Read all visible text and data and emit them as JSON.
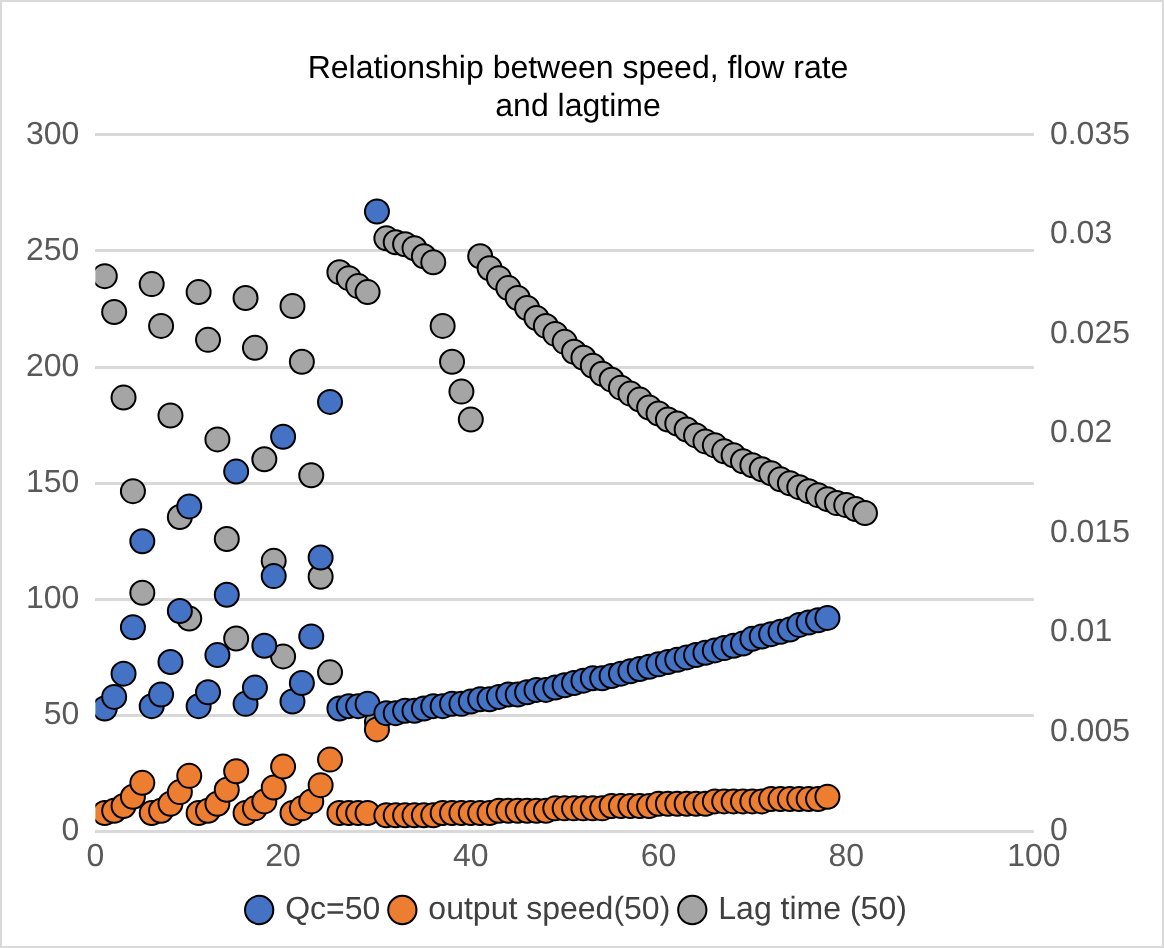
{
  "chart_data": {
    "type": "scatter",
    "title": "Relationship between speed, flow rate and lagtime",
    "x": [
      1,
      2,
      3,
      4,
      5,
      6,
      7,
      8,
      9,
      10,
      11,
      12,
      13,
      14,
      15,
      16,
      17,
      18,
      19,
      20,
      21,
      22,
      23,
      24,
      25,
      26,
      27,
      28,
      29,
      30,
      31,
      32,
      33,
      34,
      35,
      36,
      37,
      38,
      39,
      40,
      41,
      42,
      43,
      44,
      45,
      46,
      47,
      48,
      49,
      50,
      51,
      52,
      53,
      54,
      55,
      56,
      57,
      58,
      59,
      60,
      61,
      62,
      63,
      64,
      65,
      66,
      67,
      68,
      69,
      70,
      71,
      72,
      73,
      74,
      75,
      76,
      77,
      78
    ],
    "series": [
      {
        "name": "Qc=50",
        "color": "#4472c4",
        "values": [
          53,
          58,
          68,
          88,
          125,
          54,
          59,
          73,
          95,
          140,
          54,
          60,
          76,
          102,
          155,
          55,
          62,
          80,
          110,
          170,
          56,
          64,
          84,
          118,
          185,
          53,
          54,
          54,
          55,
          267,
          51,
          51,
          52,
          52,
          53,
          54,
          54,
          55,
          55,
          56,
          57,
          57,
          58,
          59,
          59,
          60,
          61,
          61,
          62,
          63,
          64,
          65,
          66,
          66,
          67,
          68,
          69,
          70,
          71,
          72,
          73,
          74,
          75,
          76,
          77,
          78,
          79,
          80,
          81,
          83,
          84,
          85,
          86,
          87,
          89,
          90,
          91,
          92
        ]
      },
      {
        "name": "output speed(50)",
        "color": "#ed7d31",
        "values": [
          8,
          9,
          11,
          15,
          21,
          8,
          9,
          12,
          17,
          24,
          8,
          9,
          12,
          18,
          26,
          8,
          10,
          13,
          19,
          28,
          8,
          10,
          13,
          20,
          31,
          8,
          8,
          8,
          8,
          44,
          7,
          7,
          7,
          7,
          7,
          7,
          8,
          8,
          8,
          8,
          8,
          8,
          9,
          9,
          9,
          9,
          9,
          9,
          10,
          10,
          10,
          10,
          10,
          10,
          11,
          11,
          11,
          11,
          11,
          12,
          12,
          12,
          12,
          12,
          12,
          13,
          13,
          13,
          13,
          13,
          13,
          14,
          14,
          14,
          14,
          14,
          14,
          15
        ]
      },
      {
        "name": "Lag time (50)",
        "color": "#a5a5a5",
        "axis": "y2",
        "x": [
          1,
          2,
          3,
          4,
          5,
          6,
          7,
          8,
          9,
          10,
          11,
          12,
          13,
          14,
          15,
          16,
          17,
          18,
          19,
          20,
          21,
          22,
          23,
          24,
          25,
          26,
          27,
          28,
          29,
          30,
          31,
          32,
          33,
          34,
          35,
          36,
          37,
          38,
          39,
          40,
          41,
          42,
          43,
          44,
          45,
          46,
          47,
          48,
          49,
          50,
          51,
          52,
          53,
          54,
          55,
          56,
          57,
          58,
          59,
          60,
          61,
          62,
          63,
          64,
          65,
          66,
          67,
          68,
          69,
          70,
          71,
          72,
          73,
          74,
          75,
          76,
          77,
          78,
          79,
          80,
          81,
          82
        ],
        "values": [
          0.0279,
          0.0261,
          0.0218,
          0.0171,
          0.012,
          0.0275,
          0.0254,
          0.0209,
          0.0158,
          0.0107,
          0.0271,
          0.0247,
          0.0197,
          0.0147,
          0.0097,
          0.0268,
          0.0243,
          0.0187,
          0.0136,
          0.0088,
          0.0264,
          0.0236,
          0.0179,
          0.0128,
          0.008,
          0.0281,
          0.0278,
          0.0274,
          0.0271,
          0.0055,
          0.0298,
          0.0296,
          0.0295,
          0.0293,
          0.0289,
          0.0286,
          0.0254,
          0.0236,
          0.0221,
          0.0207,
          0.0289,
          0.0283,
          0.0278,
          0.0273,
          0.0268,
          0.0263,
          0.0258,
          0.0254,
          0.025,
          0.0246,
          0.0241,
          0.0238,
          0.0234,
          0.023,
          0.0227,
          0.0223,
          0.022,
          0.0217,
          0.0213,
          0.021,
          0.0207,
          0.0205,
          0.0202,
          0.0199,
          0.0196,
          0.0194,
          0.0191,
          0.0189,
          0.0186,
          0.0184,
          0.0182,
          0.018,
          0.0177,
          0.0175,
          0.0173,
          0.0171,
          0.0169,
          0.0167,
          0.0165,
          0.0164,
          0.0162,
          0.016
        ]
      }
    ],
    "xlim": [
      0,
      100
    ],
    "xticks": [
      0,
      20,
      40,
      60,
      80,
      100
    ],
    "ylim": [
      0,
      300
    ],
    "yticks": [
      0,
      50,
      100,
      150,
      200,
      250,
      300
    ],
    "y2lim": [
      0,
      0.035
    ],
    "y2ticks": [
      0,
      0.005,
      0.01,
      0.015,
      0.02,
      0.025,
      0.03,
      0.035
    ],
    "grid": "y",
    "legend": "bottom",
    "marker": "circle"
  }
}
